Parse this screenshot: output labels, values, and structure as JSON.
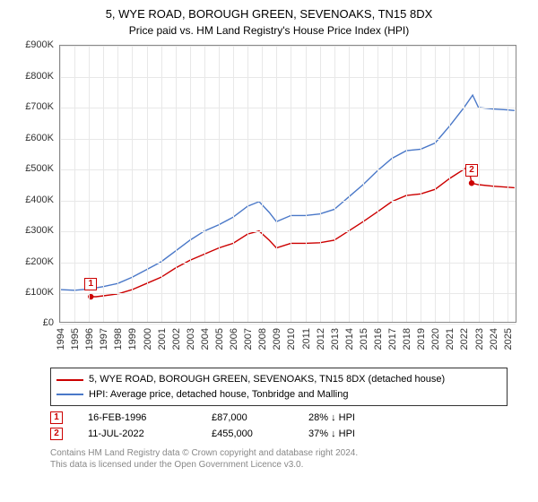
{
  "title": "5, WYE ROAD, BOROUGH GREEN, SEVENOAKS, TN15 8DX",
  "subtitle": "Price paid vs. HM Land Registry's House Price Index (HPI)",
  "chart": {
    "type": "line",
    "background_color": "#ffffff",
    "grid_color": "#e8e8e8",
    "border_color": "#888888",
    "xlim": [
      1994,
      2025.7
    ],
    "ylim": [
      0,
      900
    ],
    "x_ticks": [
      1994,
      1995,
      1996,
      1997,
      1998,
      1999,
      2000,
      2001,
      2002,
      2003,
      2004,
      2005,
      2006,
      2007,
      2008,
      2009,
      2010,
      2011,
      2012,
      2013,
      2014,
      2015,
      2016,
      2017,
      2018,
      2019,
      2020,
      2021,
      2022,
      2023,
      2024,
      2025
    ],
    "y_ticks": [
      {
        "v": 0,
        "label": "£0"
      },
      {
        "v": 100,
        "label": "£100K"
      },
      {
        "v": 200,
        "label": "£200K"
      },
      {
        "v": 300,
        "label": "£300K"
      },
      {
        "v": 400,
        "label": "£400K"
      },
      {
        "v": 500,
        "label": "£500K"
      },
      {
        "v": 600,
        "label": "£600K"
      },
      {
        "v": 700,
        "label": "£700K"
      },
      {
        "v": 800,
        "label": "£800K"
      },
      {
        "v": 900,
        "label": "£900K"
      }
    ],
    "tick_fontsize": 11,
    "series_red": {
      "color": "#cc0000",
      "stroke_width": 1.4,
      "label": "5, WYE ROAD, BOROUGH GREEN, SEVENOAKS, TN15 8DX (detached house)",
      "points": [
        [
          1996.13,
          87
        ],
        [
          1996.5,
          87
        ],
        [
          1997,
          90
        ],
        [
          1998,
          96
        ],
        [
          1999,
          110
        ],
        [
          2000,
          130
        ],
        [
          2001,
          150
        ],
        [
          2002,
          180
        ],
        [
          2003,
          205
        ],
        [
          2004,
          225
        ],
        [
          2005,
          245
        ],
        [
          2006,
          260
        ],
        [
          2007,
          290
        ],
        [
          2007.8,
          300
        ],
        [
          2008.5,
          270
        ],
        [
          2009,
          245
        ],
        [
          2010,
          260
        ],
        [
          2011,
          260
        ],
        [
          2012,
          262
        ],
        [
          2013,
          270
        ],
        [
          2014,
          300
        ],
        [
          2015,
          330
        ],
        [
          2016,
          362
        ],
        [
          2017,
          395
        ],
        [
          2018,
          415
        ],
        [
          2019,
          420
        ],
        [
          2020,
          435
        ],
        [
          2021,
          470
        ],
        [
          2022,
          500
        ],
        [
          2022.3,
          510
        ],
        [
          2022.53,
          455
        ],
        [
          2023,
          450
        ],
        [
          2024,
          445
        ],
        [
          2025,
          442
        ],
        [
          2025.5,
          440
        ]
      ]
    },
    "series_blue": {
      "color": "#4a78c8",
      "stroke_width": 1.4,
      "label": "HPI: Average price, detached house, Tonbridge and Malling",
      "points": [
        [
          1994,
          110
        ],
        [
          1995,
          108
        ],
        [
          1996,
          112
        ],
        [
          1997,
          120
        ],
        [
          1998,
          130
        ],
        [
          1999,
          150
        ],
        [
          2000,
          175
        ],
        [
          2001,
          200
        ],
        [
          2002,
          235
        ],
        [
          2003,
          270
        ],
        [
          2004,
          300
        ],
        [
          2005,
          320
        ],
        [
          2006,
          345
        ],
        [
          2007,
          380
        ],
        [
          2007.8,
          395
        ],
        [
          2008.5,
          360
        ],
        [
          2009,
          330
        ],
        [
          2010,
          350
        ],
        [
          2011,
          350
        ],
        [
          2012,
          355
        ],
        [
          2013,
          370
        ],
        [
          2014,
          410
        ],
        [
          2015,
          450
        ],
        [
          2016,
          495
        ],
        [
          2017,
          535
        ],
        [
          2018,
          560
        ],
        [
          2019,
          565
        ],
        [
          2020,
          585
        ],
        [
          2021,
          640
        ],
        [
          2022,
          700
        ],
        [
          2022.6,
          740
        ],
        [
          2023,
          700
        ],
        [
          2024,
          695
        ],
        [
          2025,
          692
        ],
        [
          2025.5,
          690
        ]
      ]
    },
    "markers": [
      {
        "n": "1",
        "x": 1996.13,
        "y": 87
      },
      {
        "n": "2",
        "x": 2022.53,
        "y": 455
      }
    ]
  },
  "legend": {
    "border_color": "#333333",
    "items": [
      {
        "color": "#cc0000",
        "label": "5, WYE ROAD, BOROUGH GREEN, SEVENOAKS, TN15 8DX (detached house)"
      },
      {
        "color": "#4a78c8",
        "label": "HPI: Average price, detached house, Tonbridge and Malling"
      }
    ]
  },
  "transactions": [
    {
      "n": "1",
      "date": "16-FEB-1996",
      "price": "£87,000",
      "delta": "28% ↓ HPI"
    },
    {
      "n": "2",
      "date": "11-JUL-2022",
      "price": "£455,000",
      "delta": "37% ↓ HPI"
    }
  ],
  "footer_line1": "Contains HM Land Registry data © Crown copyright and database right 2024.",
  "footer_line2": "This data is licensed under the Open Government Licence v3.0."
}
